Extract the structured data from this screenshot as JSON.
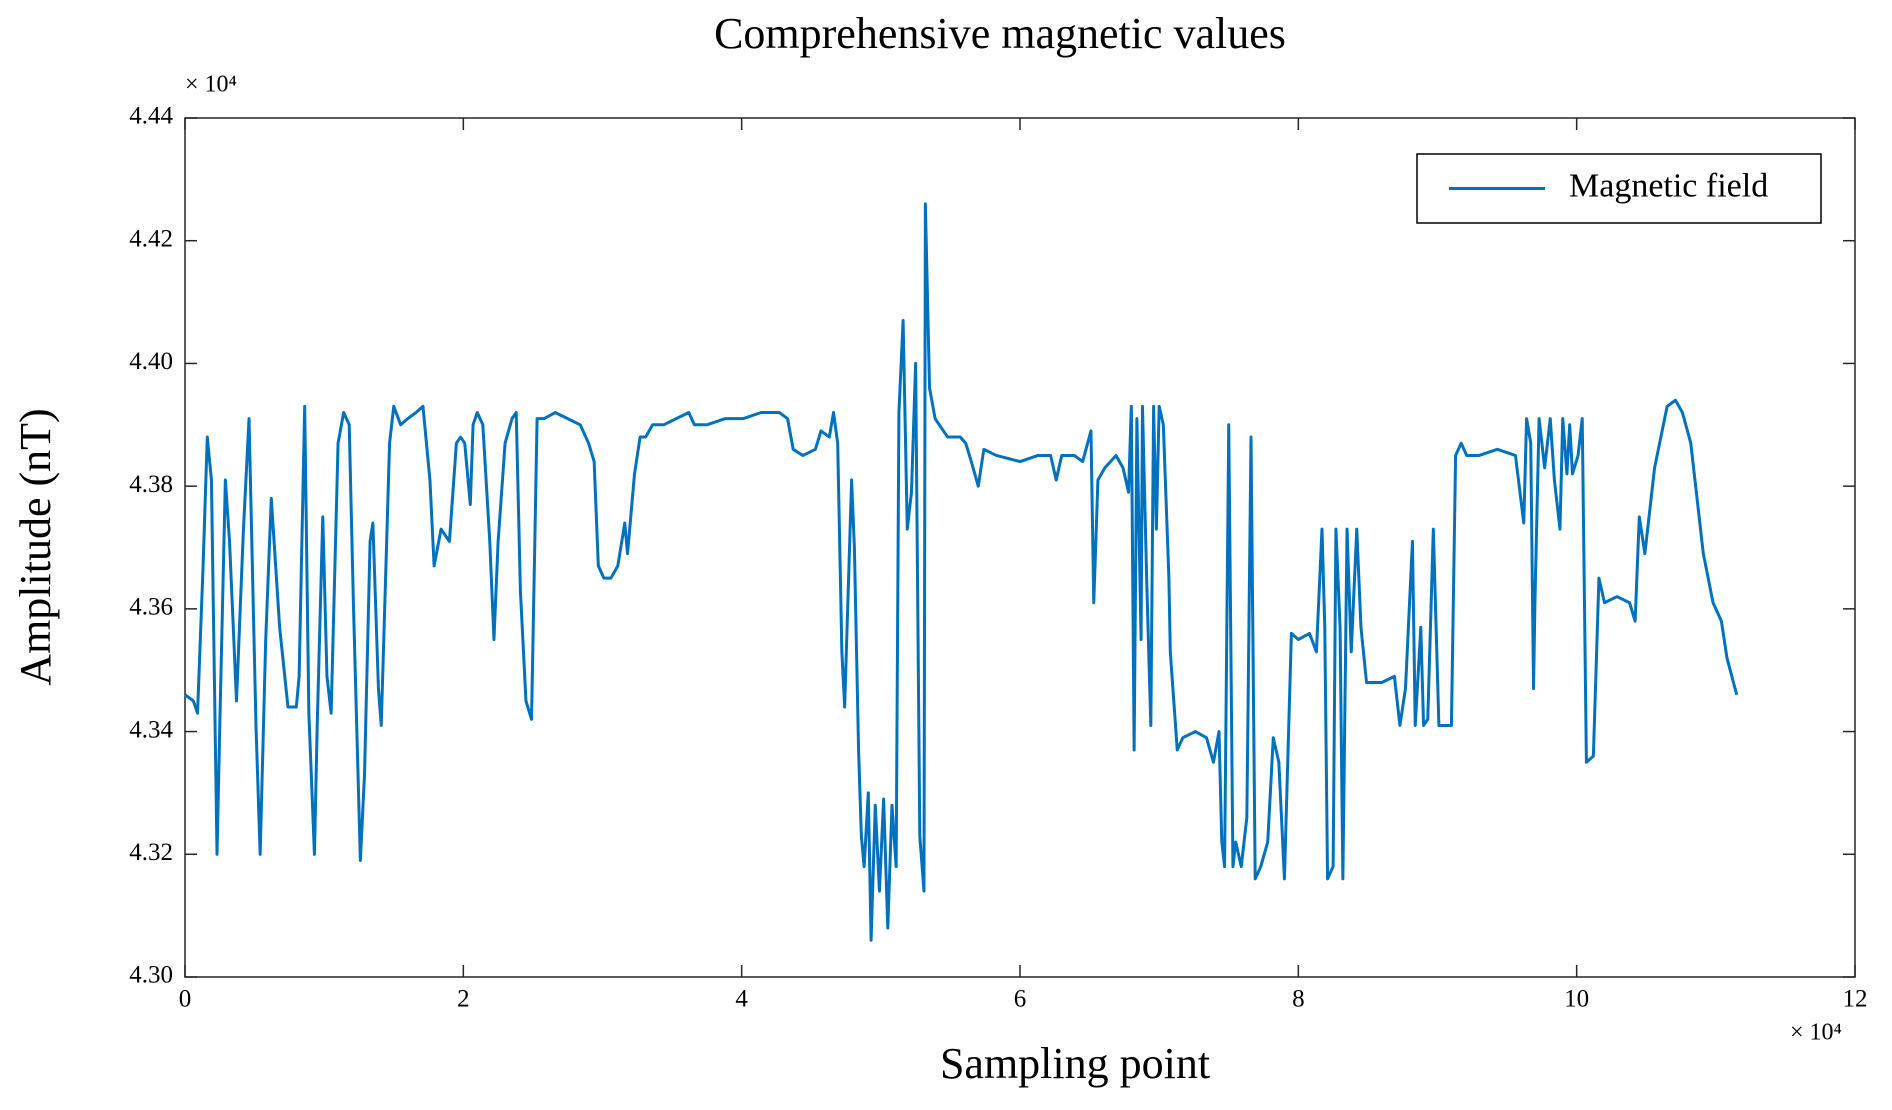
{
  "chart_data": {
    "type": "line",
    "title": "Comprehensive magnetic  values",
    "x_label": "Sampling point",
    "y_label": "Amplitude (nT)",
    "x_multiplier": "× 10⁴",
    "y_multiplier": "× 10⁴",
    "xlim": [
      0,
      12
    ],
    "xticks": [
      0,
      2,
      4,
      6,
      8,
      10,
      12
    ],
    "ylim": [
      4.3,
      4.44
    ],
    "yticks": [
      {
        "value": 4.3,
        "label": "4.30"
      },
      {
        "value": 4.32,
        "label": "4.32"
      },
      {
        "value": 4.34,
        "label": "4.34"
      },
      {
        "value": 4.36,
        "label": "4.36"
      },
      {
        "value": 4.38,
        "label": "4.38"
      },
      {
        "value": 4.4,
        "label": "4.40"
      },
      {
        "value": 4.42,
        "label": "4.42"
      },
      {
        "value": 4.44,
        "label": "4.44"
      }
    ],
    "grid": false,
    "legend": "upper right",
    "x": [
      0.0,
      0.06,
      0.09,
      0.13,
      0.16,
      0.19,
      0.23,
      0.25,
      0.29,
      0.32,
      0.37,
      0.42,
      0.46,
      0.51,
      0.54,
      0.58,
      0.62,
      0.68,
      0.74,
      0.8,
      0.82,
      0.86,
      0.89,
      0.93,
      0.95,
      0.99,
      1.02,
      1.05,
      1.1,
      1.14,
      1.18,
      1.21,
      1.26,
      1.29,
      1.33,
      1.35,
      1.39,
      1.41,
      1.47,
      1.5,
      1.55,
      1.6,
      1.66,
      1.71,
      1.76,
      1.79,
      1.84,
      1.9,
      1.95,
      1.98,
      2.01,
      2.05,
      2.07,
      2.1,
      2.14,
      2.19,
      2.22,
      2.25,
      2.3,
      2.35,
      2.38,
      2.41,
      2.45,
      2.49,
      2.53,
      2.58,
      2.66,
      2.75,
      2.84,
      2.88,
      2.9,
      2.94,
      2.97,
      3.01,
      3.06,
      3.11,
      3.16,
      3.18,
      3.23,
      3.27,
      3.31,
      3.36,
      3.44,
      3.53,
      3.62,
      3.66,
      3.75,
      3.88,
      4.01,
      4.14,
      4.27,
      4.33,
      4.37,
      4.44,
      4.53,
      4.57,
      4.63,
      4.66,
      4.69,
      4.72,
      4.74,
      4.79,
      4.81,
      4.84,
      4.86,
      4.88,
      4.91,
      4.93,
      4.96,
      4.99,
      5.02,
      5.05,
      5.08,
      5.11,
      5.13,
      5.16,
      5.19,
      5.22,
      5.25,
      5.28,
      5.31,
      5.32,
      5.35,
      5.39,
      5.48,
      5.57,
      5.61,
      5.65,
      5.7,
      5.74,
      5.83,
      6.0,
      6.13,
      6.22,
      6.26,
      6.3,
      6.39,
      6.45,
      6.51,
      6.53,
      6.56,
      6.61,
      6.69,
      6.74,
      6.78,
      6.8,
      6.82,
      6.84,
      6.87,
      6.88,
      6.91,
      6.94,
      6.96,
      6.98,
      7.0,
      7.03,
      7.07,
      7.08,
      7.13,
      7.17,
      7.26,
      7.34,
      7.39,
      7.43,
      7.45,
      7.47,
      7.5,
      7.53,
      7.55,
      7.59,
      7.63,
      7.66,
      7.69,
      7.73,
      7.78,
      7.82,
      7.86,
      7.9,
      7.95,
      8.0,
      8.08,
      8.13,
      8.17,
      8.19,
      8.21,
      8.25,
      8.27,
      8.3,
      8.32,
      8.35,
      8.38,
      8.42,
      8.45,
      8.49,
      8.53,
      8.6,
      8.69,
      8.73,
      8.77,
      8.82,
      8.84,
      8.88,
      8.9,
      8.93,
      8.97,
      9.01,
      9.05,
      9.1,
      9.13,
      9.17,
      9.21,
      9.3,
      9.43,
      9.56,
      9.62,
      9.64,
      9.67,
      9.69,
      9.7,
      9.73,
      9.75,
      9.77,
      9.81,
      9.84,
      9.88,
      9.9,
      9.93,
      9.95,
      9.97,
      10.01,
      10.04,
      10.07,
      10.12,
      10.16,
      10.2,
      10.29,
      10.38,
      10.42,
      10.45,
      10.49,
      10.56,
      10.65,
      10.71,
      10.76,
      10.82,
      10.87,
      10.91,
      10.98,
      11.04,
      11.08,
      11.15
    ],
    "series": [
      {
        "name": "Magnetic field",
        "color": "#0072bd",
        "values": [
          4.346,
          4.345,
          4.343,
          4.367,
          4.388,
          4.381,
          4.32,
          4.341,
          4.381,
          4.371,
          4.345,
          4.373,
          4.391,
          4.341,
          4.32,
          4.355,
          4.378,
          4.357,
          4.344,
          4.344,
          4.349,
          4.393,
          4.343,
          4.32,
          4.341,
          4.375,
          4.349,
          4.343,
          4.387,
          4.392,
          4.39,
          4.361,
          4.319,
          4.333,
          4.371,
          4.374,
          4.347,
          4.341,
          4.387,
          4.393,
          4.39,
          4.391,
          4.392,
          4.393,
          4.381,
          4.367,
          4.373,
          4.371,
          4.387,
          4.388,
          4.387,
          4.377,
          4.39,
          4.392,
          4.39,
          4.371,
          4.355,
          4.371,
          4.387,
          4.391,
          4.392,
          4.363,
          4.345,
          4.342,
          4.391,
          4.391,
          4.392,
          4.391,
          4.39,
          4.388,
          4.387,
          4.384,
          4.367,
          4.365,
          4.365,
          4.367,
          4.374,
          4.369,
          4.382,
          4.388,
          4.388,
          4.39,
          4.39,
          4.391,
          4.392,
          4.39,
          4.39,
          4.391,
          4.391,
          4.392,
          4.392,
          4.391,
          4.386,
          4.385,
          4.386,
          4.389,
          4.388,
          4.392,
          4.387,
          4.353,
          4.344,
          4.381,
          4.37,
          4.337,
          4.323,
          4.318,
          4.33,
          4.306,
          4.328,
          4.314,
          4.329,
          4.308,
          4.328,
          4.318,
          4.392,
          4.407,
          4.373,
          4.379,
          4.4,
          4.323,
          4.314,
          4.426,
          4.396,
          4.391,
          4.388,
          4.388,
          4.387,
          4.384,
          4.38,
          4.386,
          4.385,
          4.384,
          4.385,
          4.385,
          4.381,
          4.385,
          4.385,
          4.384,
          4.389,
          4.361,
          4.381,
          4.383,
          4.385,
          4.383,
          4.379,
          4.393,
          4.337,
          4.391,
          4.355,
          4.393,
          4.365,
          4.341,
          4.393,
          4.373,
          4.393,
          4.39,
          4.365,
          4.353,
          4.337,
          4.339,
          4.34,
          4.339,
          4.335,
          4.34,
          4.322,
          4.318,
          4.39,
          4.318,
          4.322,
          4.318,
          4.326,
          4.388,
          4.316,
          4.318,
          4.322,
          4.339,
          4.335,
          4.316,
          4.356,
          4.355,
          4.356,
          4.353,
          4.373,
          4.357,
          4.316,
          4.318,
          4.373,
          4.357,
          4.316,
          4.373,
          4.353,
          4.373,
          4.357,
          4.348,
          4.348,
          4.348,
          4.349,
          4.341,
          4.347,
          4.371,
          4.341,
          4.357,
          4.341,
          4.342,
          4.373,
          4.341,
          4.341,
          4.341,
          4.385,
          4.387,
          4.385,
          4.385,
          4.386,
          4.385,
          4.374,
          4.391,
          4.387,
          4.347,
          4.361,
          4.391,
          4.387,
          4.383,
          4.391,
          4.381,
          4.373,
          4.391,
          4.382,
          4.39,
          4.382,
          4.385,
          4.391,
          4.335,
          4.336,
          4.365,
          4.361,
          4.362,
          4.361,
          4.358,
          4.375,
          4.369,
          4.383,
          4.393,
          4.394,
          4.392,
          4.387,
          4.377,
          4.369,
          4.361,
          4.358,
          4.352,
          4.346
        ]
      }
    ]
  }
}
